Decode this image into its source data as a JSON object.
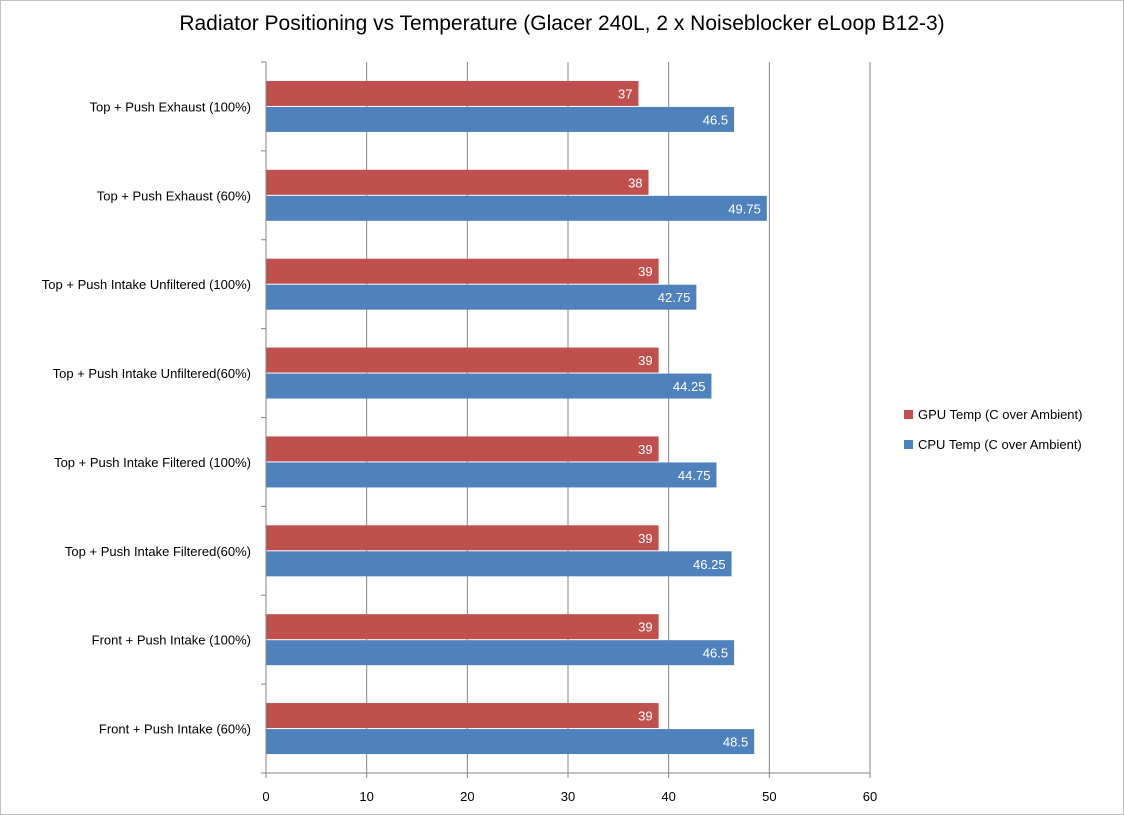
{
  "chart_data": {
    "type": "bar",
    "orientation": "horizontal",
    "title": "Radiator Positioning vs Temperature (Glacer 240L, 2 x Noiseblocker eLoop B12-3)",
    "xlabel": "",
    "ylabel": "",
    "xlim": [
      0,
      60
    ],
    "x_ticks": [
      "0",
      "10",
      "20",
      "30",
      "40",
      "50",
      "60"
    ],
    "grid": true,
    "legend_position": "right",
    "categories": [
      "Top + Push Exhaust (100%)",
      "Top + Push Exhaust (60%)",
      "Top + Push Intake Unfiltered (100%)",
      "Top + Push Intake Unfiltered(60%)",
      "Top + Push Intake Filtered (100%)",
      "Top + Push Intake Filtered(60%)",
      "Front + Push Intake (100%)",
      "Front + Push Intake (60%)"
    ],
    "series": [
      {
        "name": "GPU Temp (C over Ambient)",
        "color": "#c0504d",
        "values": [
          37,
          38,
          39,
          39,
          39,
          39,
          39,
          39
        ],
        "labels": [
          "37",
          "38",
          "39",
          "39",
          "39",
          "39",
          "39",
          "39"
        ]
      },
      {
        "name": "CPU Temp (C over Ambient)",
        "color": "#4f81bd",
        "values": [
          46.5,
          49.75,
          42.75,
          44.25,
          44.75,
          46.25,
          46.5,
          48.5
        ],
        "labels": [
          "46.5",
          "49.75",
          "42.75",
          "44.25",
          "44.75",
          "46.25",
          "46.5",
          "48.5"
        ]
      }
    ]
  }
}
